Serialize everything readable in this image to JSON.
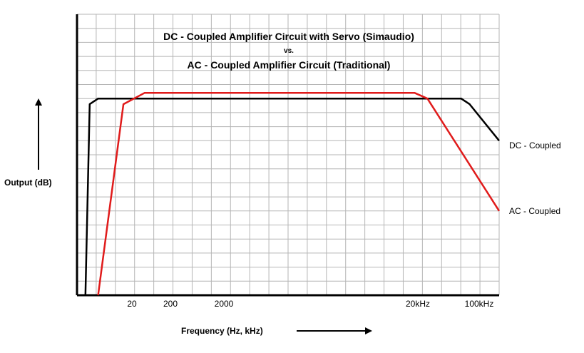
{
  "chart_data": {
    "type": "line",
    "title_line1": "DC - Coupled Amplifier Circuit with Servo   (Simaudio)",
    "title_line2": "vs.",
    "title_line3": "AC - Coupled Amplifier Circuit   (Traditional)",
    "xlabel": "Frequency (Hz, kHz)",
    "ylabel": "Output (dB)",
    "x_tick_labels": [
      "20",
      "200",
      "2000",
      "20kHz",
      "100kHz"
    ],
    "grid": true,
    "colors": {
      "dc": "#000000",
      "ac": "#e01b1b"
    },
    "series": [
      {
        "name": "DC - Coupled",
        "color": "#000000",
        "points": [
          [
            0.02,
            0.0
          ],
          [
            0.03,
            0.68
          ],
          [
            0.05,
            0.7
          ],
          [
            0.91,
            0.7
          ],
          [
            0.93,
            0.68
          ],
          [
            1.0,
            0.55
          ]
        ]
      },
      {
        "name": "AC - Coupled",
        "color": "#e01b1b",
        "points": [
          [
            0.05,
            0.0
          ],
          [
            0.11,
            0.68
          ],
          [
            0.16,
            0.72
          ],
          [
            0.8,
            0.72
          ],
          [
            0.83,
            0.7
          ],
          [
            1.0,
            0.3
          ]
        ]
      }
    ]
  }
}
